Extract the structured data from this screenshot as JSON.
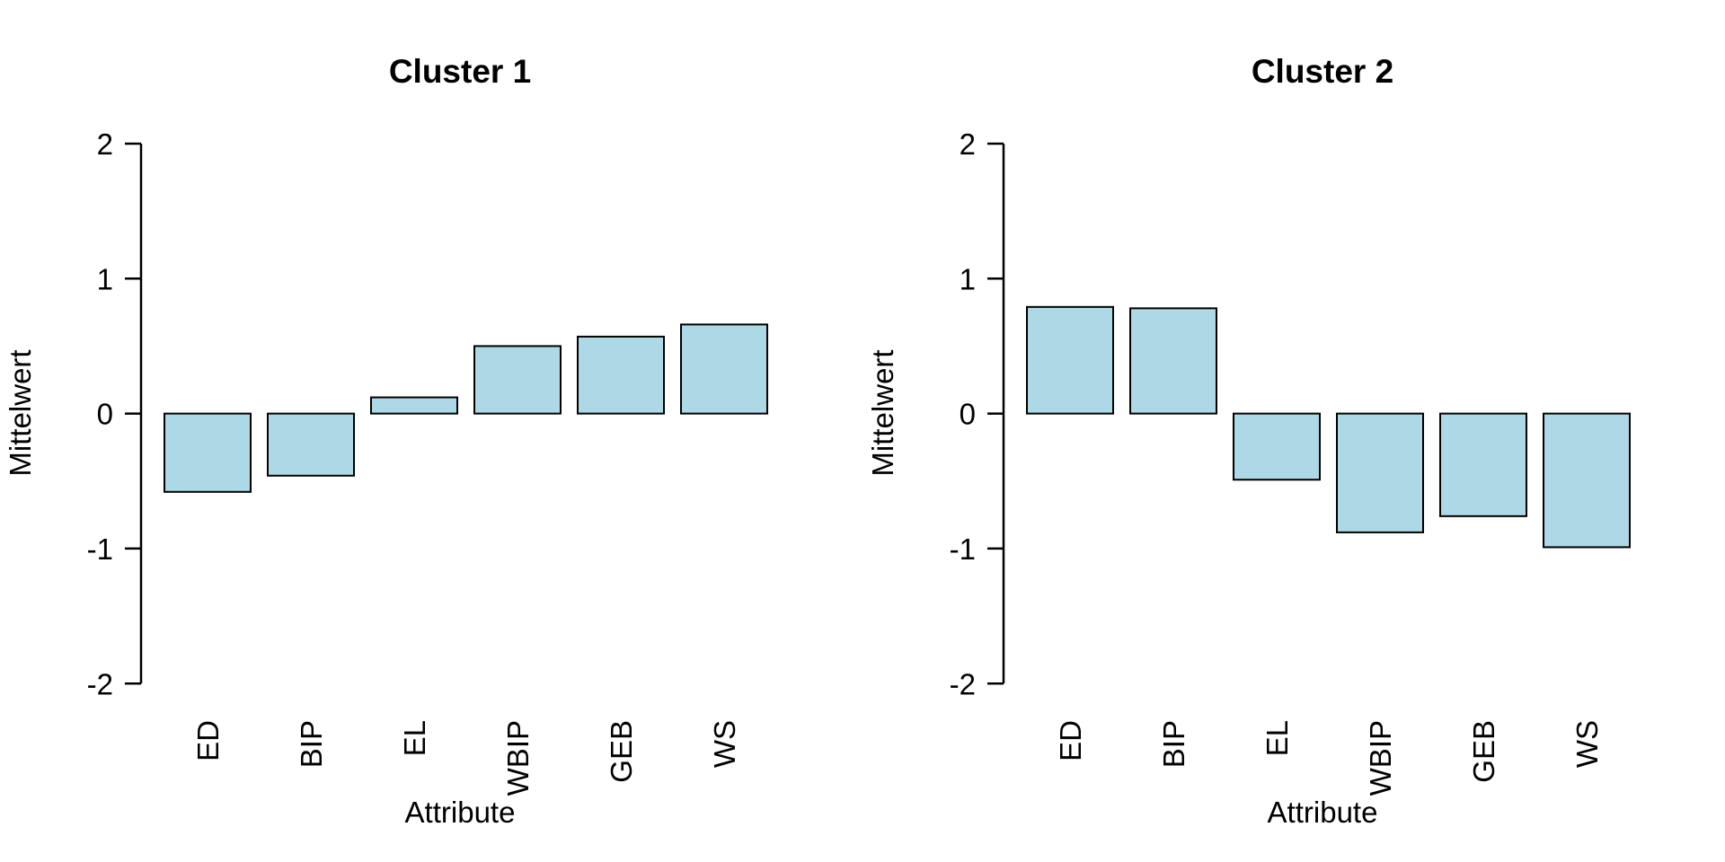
{
  "figure": {
    "background": "#ffffff",
    "n_panels": 2
  },
  "chart_data": [
    {
      "type": "bar",
      "title": "Cluster 1",
      "xlabel": "Attribute",
      "ylabel": "Mittelwert",
      "categories": [
        "ED",
        "BIP",
        "EL",
        "WBIP",
        "GEB",
        "WS"
      ],
      "values": [
        -0.58,
        -0.46,
        0.12,
        0.5,
        0.57,
        0.66
      ],
      "ylim": [
        -2,
        2
      ],
      "yticks": [
        2,
        1,
        0,
        -1,
        -2
      ],
      "ytick_labels": [
        "2",
        "1",
        "0",
        "-1",
        "-2"
      ],
      "grid": "off",
      "legend": "none",
      "bar_fill": "#ADD8E6",
      "bar_stroke": "#000000",
      "axis_color": "#000000",
      "x_label_rotation_deg": -90
    },
    {
      "type": "bar",
      "title": "Cluster 2",
      "xlabel": "Attribute",
      "ylabel": "Mittelwert",
      "categories": [
        "ED",
        "BIP",
        "EL",
        "WBIP",
        "GEB",
        "WS"
      ],
      "values": [
        0.79,
        0.78,
        -0.49,
        -0.88,
        -0.76,
        -0.99
      ],
      "ylim": [
        -2,
        2
      ],
      "yticks": [
        2,
        1,
        0,
        -1,
        -2
      ],
      "ytick_labels": [
        "2",
        "1",
        "0",
        "-1",
        "-2"
      ],
      "grid": "off",
      "legend": "none",
      "bar_fill": "#ADD8E6",
      "bar_stroke": "#000000",
      "axis_color": "#000000",
      "x_label_rotation_deg": -90
    }
  ]
}
